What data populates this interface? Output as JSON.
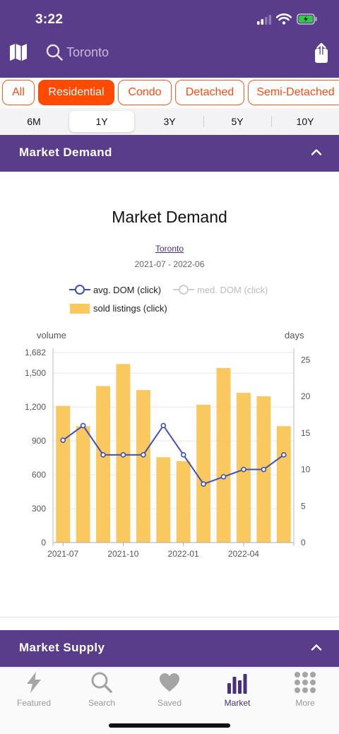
{
  "status": {
    "time": "3:22"
  },
  "search": {
    "placeholder": "Toronto"
  },
  "icons": {
    "map": "map-icon",
    "search": "search-icon",
    "share": "share-icon"
  },
  "categories": [
    {
      "label": "All",
      "active": false
    },
    {
      "label": "Residential",
      "active": true
    },
    {
      "label": "Condo",
      "active": false
    },
    {
      "label": "Detached",
      "active": false
    },
    {
      "label": "Semi-Detached",
      "active": false
    }
  ],
  "periods": [
    {
      "label": "6M",
      "active": false
    },
    {
      "label": "1Y",
      "active": true
    },
    {
      "label": "3Y",
      "active": false
    },
    {
      "label": "5Y",
      "active": false
    },
    {
      "label": "10Y",
      "active": false
    }
  ],
  "sections": {
    "demand": "Market Demand",
    "supply": "Market Supply"
  },
  "colors": {
    "brand": "#5a3d8a",
    "accent": "#ff4a00",
    "bar": "#f9c85f",
    "line": "#3f51b5"
  },
  "chart_data": {
    "type": "bar",
    "title": "Market Demand",
    "location": "Toronto",
    "date_range": "2021-07 - 2022-06",
    "legend": [
      {
        "label": "avg. DOM (click)",
        "enabled": true
      },
      {
        "label": "med. DOM (click)",
        "enabled": false
      },
      {
        "label": "sold listings (click)",
        "enabled": true
      }
    ],
    "left_axis_label": "volume",
    "right_axis_label": "days",
    "x_tick_labels": [
      "2021-07",
      "2021-10",
      "2022-01",
      "2022-04"
    ],
    "left_ticks": [
      "1,682",
      "1,500",
      "1,200",
      "900",
      "600",
      "300",
      "0"
    ],
    "right_ticks": [
      "25",
      "20",
      "15",
      "10",
      "5",
      "0"
    ],
    "ylim_left": [
      0,
      1682
    ],
    "ylim_right": [
      0,
      26
    ],
    "categories": [
      "2021-07",
      "2021-08",
      "2021-09",
      "2021-10",
      "2021-11",
      "2021-12",
      "2022-01",
      "2022-02",
      "2022-03",
      "2022-04",
      "2022-05",
      "2022-06"
    ],
    "series": [
      {
        "name": "sold listings (click)",
        "type": "bar",
        "values": [
          1210,
          1030,
          1385,
          1580,
          1350,
          755,
          720,
          1220,
          1545,
          1325,
          1295,
          1030
        ]
      },
      {
        "name": "avg. DOM (click)",
        "type": "line",
        "values": [
          14,
          16,
          12,
          12,
          12,
          16,
          12,
          8,
          9,
          10,
          10,
          12
        ]
      }
    ]
  },
  "tabs": [
    {
      "label": "Featured",
      "icon": "bolt-icon",
      "active": false
    },
    {
      "label": "Search",
      "icon": "search-icon",
      "active": false
    },
    {
      "label": "Saved",
      "icon": "heart-icon",
      "active": false
    },
    {
      "label": "Market",
      "icon": "bar-chart-icon",
      "active": true
    },
    {
      "label": "More",
      "icon": "grid-dots-icon",
      "active": false
    }
  ]
}
